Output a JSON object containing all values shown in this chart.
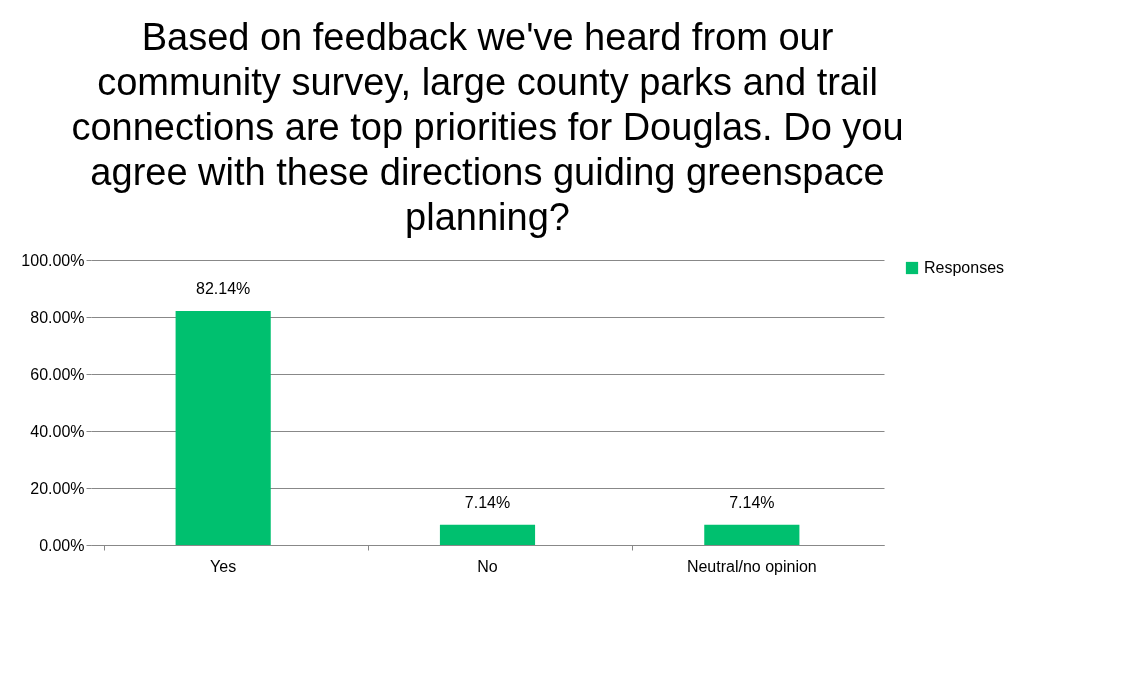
{
  "chart_data": {
    "type": "bar",
    "title": "Based on feedback we've heard from our community survey, large county parks and trail connections are top priorities for Douglas. Do you agree with these directions guiding greenspace planning?",
    "categories": [
      "Yes",
      "No",
      "Neutral/no opinion"
    ],
    "series": [
      {
        "name": "Responses",
        "color": "#00c06f",
        "values": [
          82.14,
          7.14,
          7.14
        ],
        "value_labels": [
          "82.14%",
          "7.14%",
          "7.14%"
        ]
      }
    ],
    "ylim": [
      0,
      100
    ],
    "yticks": [
      {
        "value": 0,
        "label": "0.00%"
      },
      {
        "value": 20,
        "label": "20.00%"
      },
      {
        "value": 40,
        "label": "40.00%"
      },
      {
        "value": 60,
        "label": "60.00%"
      },
      {
        "value": 80,
        "label": "80.00%"
      },
      {
        "value": 100,
        "label": "100.00%"
      }
    ],
    "grid": "y",
    "legend": "right"
  }
}
